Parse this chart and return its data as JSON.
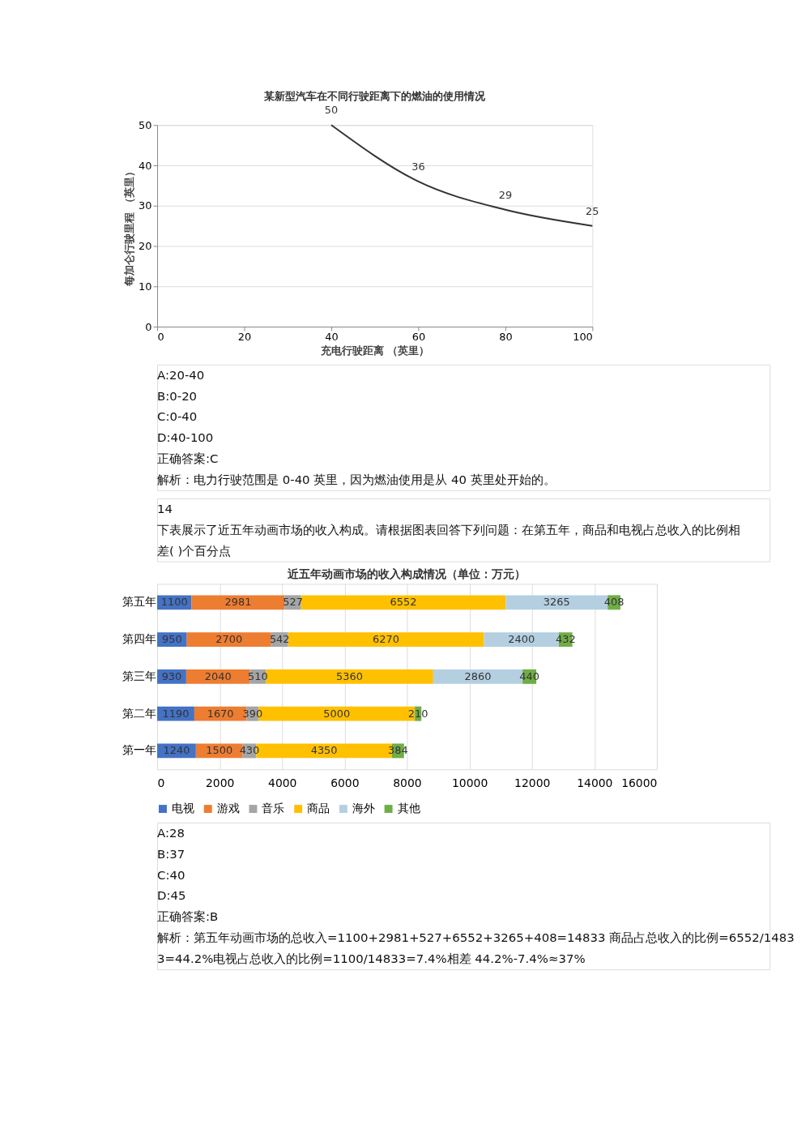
{
  "chart_data": [
    {
      "type": "line",
      "title": "某新型汽车在不同行驶距离下的燃油的使用情况",
      "xlabel": "充电行驶距离 （英里）",
      "ylabel": "每加仑行驶里程 （英里）",
      "x": [
        40,
        60,
        80,
        100
      ],
      "series": [
        {
          "color": "#333333",
          "values": [
            50,
            36,
            29,
            25
          ]
        }
      ],
      "xlim": [
        0,
        100
      ],
      "xticks": [
        0,
        20,
        40,
        60,
        80,
        100
      ],
      "ylim": [
        0,
        50
      ],
      "yticks": [
        0,
        10,
        20,
        30,
        40,
        50
      ],
      "grid": "y",
      "legend": false,
      "data_labels": true,
      "line_style": "solid",
      "marker": "none",
      "annotations": [
        "A:20-40",
        "B:0-20",
        "C:0-40",
        "D:40-100",
        "正确答案:C",
        "解析：电力行驶范围是 0-40 英里，因为燃油使用是从 40 英里处开始的。"
      ]
    },
    {
      "type": "bar",
      "orientation": "horizontal",
      "stacked": true,
      "title": "近五年动画市场的收入构成情况（单位：万元）",
      "subtitle": "14\n下表展示了近五年动画市场的收入构成。请根据图表回答下列问题：在第五年，商品和电视占总收入的比例相差( )个百分点",
      "categories": [
        "第五年",
        "第四年",
        "第三年",
        "第二年",
        "第一年"
      ],
      "series": [
        {
          "name": "电视",
          "color": "#4472c4",
          "values": [
            1100,
            950,
            930,
            1190,
            1240
          ]
        },
        {
          "name": "游戏",
          "color": "#ed7d31",
          "values": [
            2981,
            2700,
            2040,
            1670,
            1500
          ]
        },
        {
          "name": "音乐",
          "color": "#a5a5a5",
          "values": [
            527,
            542,
            510,
            390,
            430
          ]
        },
        {
          "name": "商品",
          "color": "#ffc000",
          "values": [
            6552,
            6270,
            5360,
            5000,
            4350
          ]
        },
        {
          "name": "海外",
          "color": "#b4cfe0",
          "values": [
            3265,
            2400,
            2860,
            null,
            null
          ]
        },
        {
          "name": "其他",
          "color": "#70ad47",
          "values": [
            408,
            432,
            440,
            210,
            384
          ]
        }
      ],
      "xlim": [
        0,
        16000
      ],
      "xticks": [
        0,
        2000,
        4000,
        6000,
        8000,
        10000,
        12000,
        14000,
        16000
      ],
      "grid": "x",
      "legend": "bottom",
      "data_labels": true,
      "annotations": [
        "A:28",
        "B:37",
        "C:40",
        "D:45",
        "正确答案:B",
        "解析：第五年动画市场的总收入=1100+2981+527+6552+3265+408=14833 商品占总收入的比例=6552/14833=44.2%电视占总收入的比例=1100/14833=7.4%相差 44.2%-7.4%≈37%"
      ]
    }
  ]
}
